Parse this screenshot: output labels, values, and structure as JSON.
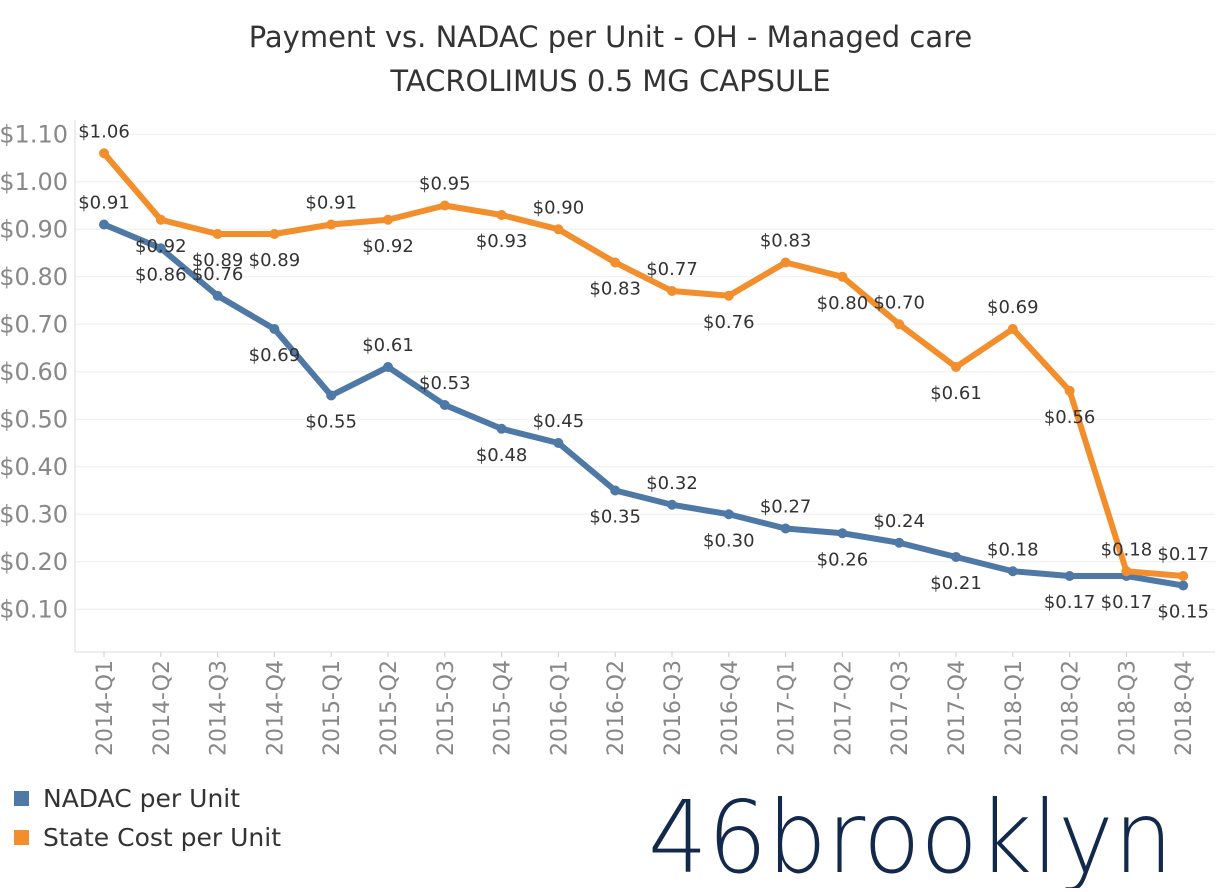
{
  "title_line1": "Payment vs. NADAC per Unit - OH - Managed care",
  "title_line2": "TACROLIMUS 0.5 MG CAPSULE",
  "legend": [
    {
      "label": "NADAC per Unit",
      "color": "#4e79a7"
    },
    {
      "label": "State Cost per Unit",
      "color": "#f28e2b"
    }
  ],
  "logo": {
    "text": "46brooklyn",
    "color": "#13294b"
  },
  "chart_data": {
    "type": "line",
    "categories": [
      "2014-Q1",
      "2014-Q2",
      "2014-Q3",
      "2014-Q4",
      "2015-Q1",
      "2015-Q2",
      "2015-Q3",
      "2015-Q4",
      "2016-Q1",
      "2016-Q2",
      "2016-Q3",
      "2016-Q4",
      "2017-Q1",
      "2017-Q2",
      "2017-Q3",
      "2017-Q4",
      "2018-Q1",
      "2018-Q2",
      "2018-Q3",
      "2018-Q4"
    ],
    "yticks": [
      "$0.10",
      "$0.20",
      "$0.30",
      "$0.40",
      "$0.50",
      "$0.60",
      "$0.70",
      "$0.80",
      "$0.90",
      "$1.00",
      "$1.10"
    ],
    "ylim": [
      0.01,
      1.13
    ],
    "grid": true,
    "legend_position": "bottom-left",
    "series": [
      {
        "name": "NADAC per Unit",
        "color": "#4e79a7",
        "values": [
          0.91,
          0.86,
          0.76,
          0.69,
          0.55,
          0.61,
          0.53,
          0.48,
          0.45,
          0.35,
          0.32,
          0.3,
          0.27,
          0.26,
          0.24,
          0.21,
          0.18,
          0.17,
          0.17,
          0.15
        ],
        "labels": [
          "$0.91",
          "$0.86",
          "$0.76",
          "$0.69",
          "$0.55",
          "$0.61",
          "$0.53",
          "$0.48",
          "$0.45",
          "$0.35",
          "$0.32",
          "$0.30",
          "$0.27",
          "$0.26",
          "$0.24",
          "$0.21",
          "$0.18",
          "$0.17",
          "$0.17",
          "$0.15"
        ]
      },
      {
        "name": "State Cost per Unit",
        "color": "#f28e2b",
        "values": [
          1.06,
          0.92,
          0.89,
          0.89,
          0.91,
          0.92,
          0.95,
          0.93,
          0.9,
          0.83,
          0.77,
          0.76,
          0.83,
          0.8,
          0.7,
          0.61,
          0.69,
          0.56,
          0.18,
          0.17
        ],
        "labels": [
          "$1.06",
          "$0.92",
          "$0.89",
          "$0.89",
          "$0.91",
          "$0.92",
          "$0.95",
          "$0.93",
          "$0.90",
          "$0.83",
          "$0.77",
          "$0.76",
          "$0.83",
          "$0.80",
          "$0.70",
          "$0.61",
          "$0.69",
          "$0.56",
          "$0.18",
          "$0.17"
        ]
      }
    ]
  }
}
